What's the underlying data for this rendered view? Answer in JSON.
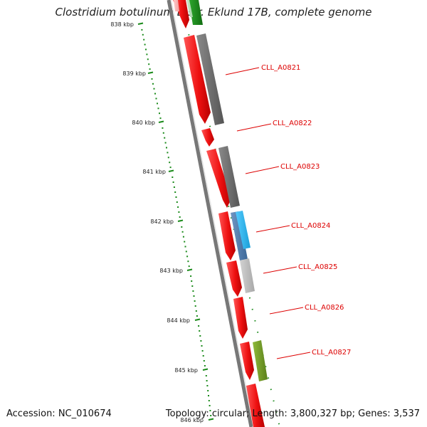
{
  "title": "Clostridium botulinum B str. Eklund 17B, complete genome",
  "footer": {
    "accession": "Accession: NC_010674",
    "stats": "Topology: circular; Length: 3,800,327 bp; Genes: 3,537"
  },
  "axis": {
    "unit": "kbp",
    "tick_labels": [
      "838 kbp",
      "839 kbp",
      "840 kbp",
      "841 kbp",
      "842 kbp",
      "843 kbp",
      "844 kbp",
      "845 kbp",
      "846 kbp"
    ]
  },
  "gene_labels": [
    "CLL_A0821",
    "CLL_A0822",
    "CLL_A0823",
    "CLL_A0824",
    "CLL_A0825",
    "CLL_A0826",
    "CLL_A0827"
  ],
  "colors": {
    "cds": "#ee1111",
    "label_text": "#dd0000",
    "tick_green": "#1a8a1a",
    "backbone": "#888888",
    "feature_dark_gray": "#666666",
    "feature_light_gray": "#bbbbbb",
    "feature_cyan": "#22bbee",
    "feature_olive": "#6f9a1f",
    "feature_green": "#1a8a1a"
  }
}
